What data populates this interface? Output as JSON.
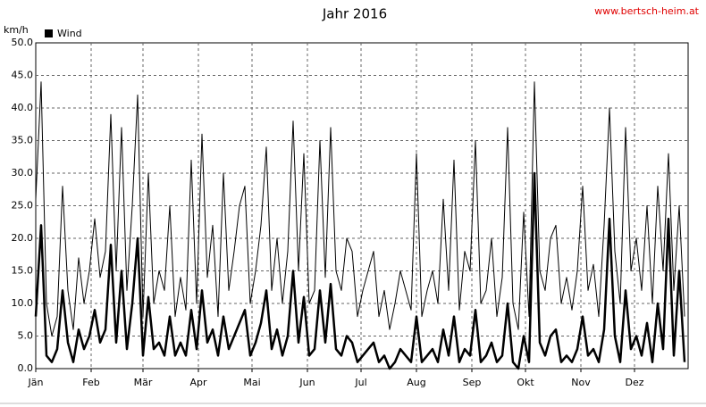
{
  "chart_data": {
    "type": "line",
    "title": "Jahr 2016",
    "source": "www.bertsch-heim.at",
    "y_label": "km/h",
    "x": [
      1,
      4,
      7,
      10,
      13,
      16,
      19,
      22,
      25,
      28,
      31,
      34,
      37,
      40,
      43,
      46,
      49,
      52,
      55,
      58,
      61,
      64,
      67,
      70,
      73,
      76,
      79,
      82,
      85,
      88,
      91,
      94,
      97,
      100,
      103,
      106,
      109,
      112,
      115,
      118,
      121,
      124,
      127,
      130,
      133,
      136,
      139,
      142,
      145,
      148,
      151,
      154,
      157,
      160,
      163,
      166,
      169,
      172,
      175,
      178,
      181,
      184,
      187,
      190,
      193,
      196,
      199,
      202,
      205,
      208,
      211,
      214,
      217,
      220,
      223,
      226,
      229,
      232,
      235,
      238,
      241,
      244,
      247,
      250,
      253,
      256,
      259,
      262,
      265,
      268,
      271,
      274,
      277,
      280,
      283,
      286,
      289,
      292,
      295,
      298,
      301,
      304,
      307,
      310,
      313,
      316,
      319,
      322,
      325,
      328,
      331,
      334,
      337,
      340,
      343,
      346,
      349,
      352,
      355,
      358,
      361,
      364
    ],
    "series": [
      {
        "name": "Wind",
        "color": "#000000",
        "values": [
          8,
          22,
          2,
          1,
          3,
          12,
          4,
          1,
          6,
          3,
          5,
          9,
          4,
          6,
          19,
          4,
          15,
          3,
          10,
          20,
          2,
          11,
          3,
          4,
          2,
          8,
          2,
          4,
          2,
          9,
          3,
          12,
          4,
          6,
          2,
          8,
          3,
          5,
          7,
          9,
          2,
          4,
          7,
          12,
          3,
          6,
          2,
          5,
          15,
          4,
          11,
          2,
          3,
          12,
          4,
          13,
          3,
          2,
          5,
          4,
          1,
          2,
          3,
          4,
          1,
          2,
          0,
          1,
          3,
          2,
          1,
          8,
          1,
          2,
          3,
          1,
          6,
          2,
          8,
          1,
          3,
          2,
          9,
          1,
          2,
          4,
          1,
          2,
          10,
          1,
          0,
          5,
          1,
          30,
          4,
          2,
          5,
          6,
          1,
          2,
          1,
          3,
          8,
          2,
          3,
          1,
          6,
          23,
          5,
          1,
          12,
          3,
          5,
          2,
          7,
          1,
          10,
          3,
          23,
          2,
          15,
          1
        ]
      },
      {
        "color": "#000000",
        "values": [
          26,
          44,
          10,
          5,
          8,
          28,
          12,
          6,
          17,
          10,
          15,
          23,
          14,
          18,
          39,
          15,
          37,
          12,
          25,
          42,
          8,
          30,
          10,
          15,
          12,
          25,
          8,
          14,
          9,
          32,
          10,
          36,
          14,
          22,
          8,
          30,
          12,
          18,
          25,
          28,
          10,
          15,
          22,
          34,
          12,
          20,
          10,
          18,
          38,
          15,
          33,
          10,
          12,
          35,
          14,
          37,
          15,
          12,
          20,
          18,
          8,
          12,
          15,
          18,
          8,
          12,
          6,
          10,
          15,
          12,
          9,
          33,
          8,
          12,
          15,
          10,
          26,
          12,
          32,
          9,
          18,
          15,
          35,
          10,
          12,
          20,
          8,
          14,
          37,
          10,
          6,
          24,
          8,
          44,
          15,
          12,
          20,
          22,
          10,
          14,
          9,
          15,
          28,
          12,
          16,
          8,
          22,
          40,
          18,
          10,
          37,
          15,
          20,
          12,
          25,
          10,
          28,
          15,
          33,
          12,
          25,
          8
        ]
      }
    ],
    "xlim": [
      1,
      366
    ],
    "xticks": [
      {
        "value": 1,
        "label": "Jän"
      },
      {
        "value": 32,
        "label": "Feb"
      },
      {
        "value": 61,
        "label": "Mär"
      },
      {
        "value": 92,
        "label": "Apr"
      },
      {
        "value": 122,
        "label": "Mai"
      },
      {
        "value": 153,
        "label": "Jun"
      },
      {
        "value": 183,
        "label": "Jul"
      },
      {
        "value": 214,
        "label": "Aug"
      },
      {
        "value": 245,
        "label": "Sep"
      },
      {
        "value": 275,
        "label": "Okt"
      },
      {
        "value": 306,
        "label": "Nov"
      },
      {
        "value": 336,
        "label": "Dez"
      }
    ],
    "ylim": [
      0,
      50
    ],
    "yticks": [
      {
        "value": 0,
        "label": "0.0"
      },
      {
        "value": 5,
        "label": "5.0"
      },
      {
        "value": 10,
        "label": "10.0"
      },
      {
        "value": 15,
        "label": "15.0"
      },
      {
        "value": 20,
        "label": "20.0"
      },
      {
        "value": 25,
        "label": "25.0"
      },
      {
        "value": 30,
        "label": "30.0"
      },
      {
        "value": 35,
        "label": "35.0"
      },
      {
        "value": 40,
        "label": "40.0"
      },
      {
        "value": 45,
        "label": "45.0"
      },
      {
        "value": 50,
        "label": "50.0"
      }
    ],
    "grid": true
  }
}
